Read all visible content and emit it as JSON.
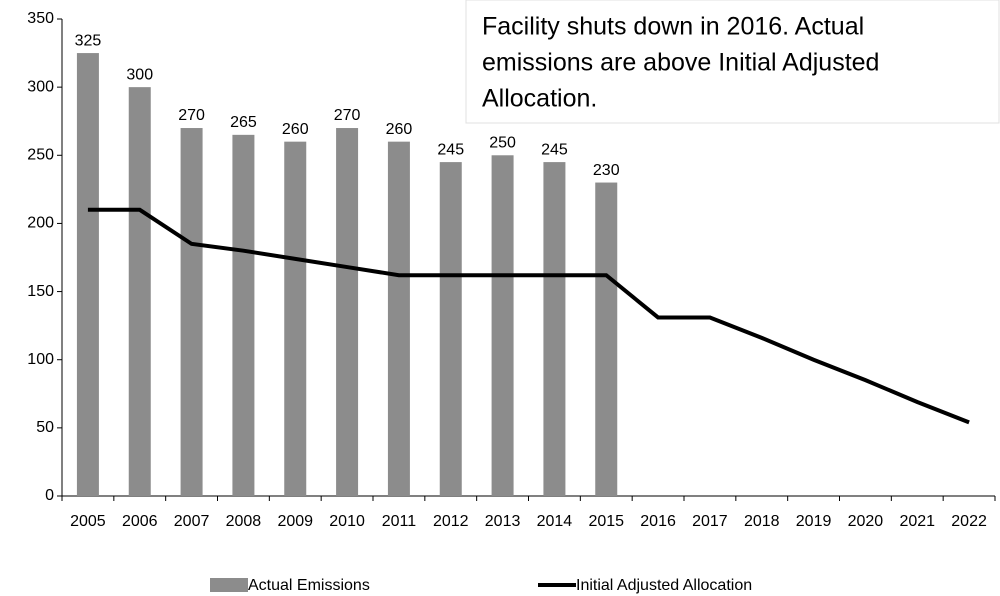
{
  "chart_data": {
    "type": "bar",
    "categories": [
      "2005",
      "2006",
      "2007",
      "2008",
      "2009",
      "2010",
      "2011",
      "2012",
      "2013",
      "2014",
      "2015",
      "2016",
      "2017",
      "2018",
      "2019",
      "2020",
      "2021",
      "2022"
    ],
    "series": [
      {
        "name": "Actual Emissions",
        "type": "bar",
        "color": "#8c8c8c",
        "values": [
          325,
          300,
          270,
          265,
          260,
          270,
          260,
          245,
          250,
          245,
          230,
          null,
          null,
          null,
          null,
          null,
          null,
          null
        ]
      },
      {
        "name": "Initial Adjusted Allocation",
        "type": "line",
        "color": "#000000",
        "values": [
          210,
          210,
          185,
          180,
          174,
          168,
          162,
          162,
          162,
          162,
          162,
          131,
          131,
          116,
          100,
          85,
          69,
          54
        ]
      }
    ],
    "annotation": [
      "Facility shuts down in 2016.  Actual",
      "emissions are above Initial Adjusted",
      "Allocation."
    ],
    "ylim": [
      0,
      350
    ],
    "yticks": [
      0,
      50,
      100,
      150,
      200,
      250,
      300,
      350
    ],
    "grid": false,
    "legend": "bottom"
  }
}
